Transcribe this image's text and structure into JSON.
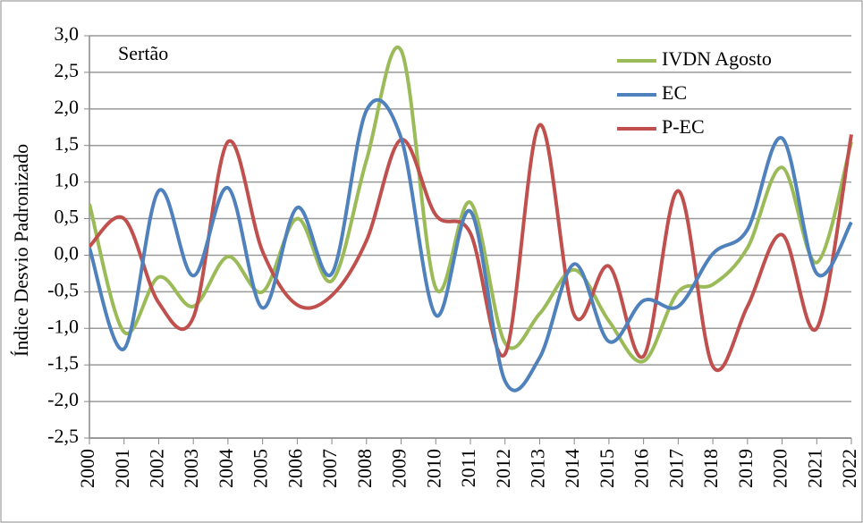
{
  "chart_data": {
    "type": "line",
    "annotation": "Sertão",
    "y_label": "Índice Desvio Padronizado",
    "x": [
      2000,
      2001,
      2002,
      2003,
      2004,
      2005,
      2006,
      2007,
      2008,
      2009,
      2010,
      2011,
      2012,
      2013,
      2014,
      2015,
      2016,
      2017,
      2018,
      2019,
      2020,
      2021,
      2022
    ],
    "xlim": [
      2000,
      2022
    ],
    "ylim": [
      -2.5,
      3.0
    ],
    "yticks": [
      {
        "value": -2.5,
        "label": "-2,5"
      },
      {
        "value": -2.0,
        "label": "-2,0"
      },
      {
        "value": -1.5,
        "label": "-1,5"
      },
      {
        "value": -1.0,
        "label": "-1,0"
      },
      {
        "value": -0.5,
        "label": "-0,5"
      },
      {
        "value": 0,
        "label": "0,0"
      },
      {
        "value": 0.5,
        "label": "0,5"
      },
      {
        "value": 1.0,
        "label": "1,0"
      },
      {
        "value": 1.5,
        "label": "1,5"
      },
      {
        "value": 2.0,
        "label": "2,0"
      },
      {
        "value": 2.5,
        "label": "2,5"
      },
      {
        "value": 3.0,
        "label": "3,0"
      }
    ],
    "grid": true,
    "legend": "upper right",
    "series": [
      {
        "name": "IVDN Agosto",
        "color": "#9bbb59",
        "values": [
          0.7,
          -1.05,
          -0.3,
          -0.7,
          -0.02,
          -0.5,
          0.5,
          -0.35,
          1.3,
          2.8,
          -0.45,
          0.72,
          -1.2,
          -0.8,
          -0.2,
          -0.9,
          -1.45,
          -0.5,
          -0.4,
          0.1,
          1.2,
          -0.1,
          1.55
        ]
      },
      {
        "name": "EC",
        "color": "#4f81bd",
        "values": [
          0.1,
          -1.28,
          0.88,
          -0.28,
          0.92,
          -0.72,
          0.65,
          -0.25,
          1.98,
          1.6,
          -0.82,
          0.6,
          -1.72,
          -1.4,
          -0.12,
          -1.18,
          -0.62,
          -0.7,
          0.02,
          0.35,
          1.6,
          -0.25,
          0.45
        ]
      },
      {
        "name": "P-EC",
        "color": "#c0504d",
        "values": [
          0.12,
          0.5,
          -0.65,
          -0.85,
          1.55,
          0.05,
          -0.68,
          -0.55,
          0.2,
          1.58,
          0.55,
          0.3,
          -1.35,
          1.78,
          -0.82,
          -0.15,
          -1.38,
          0.88,
          -1.52,
          -0.7,
          0.28,
          -1.0,
          1.65
        ]
      }
    ]
  }
}
